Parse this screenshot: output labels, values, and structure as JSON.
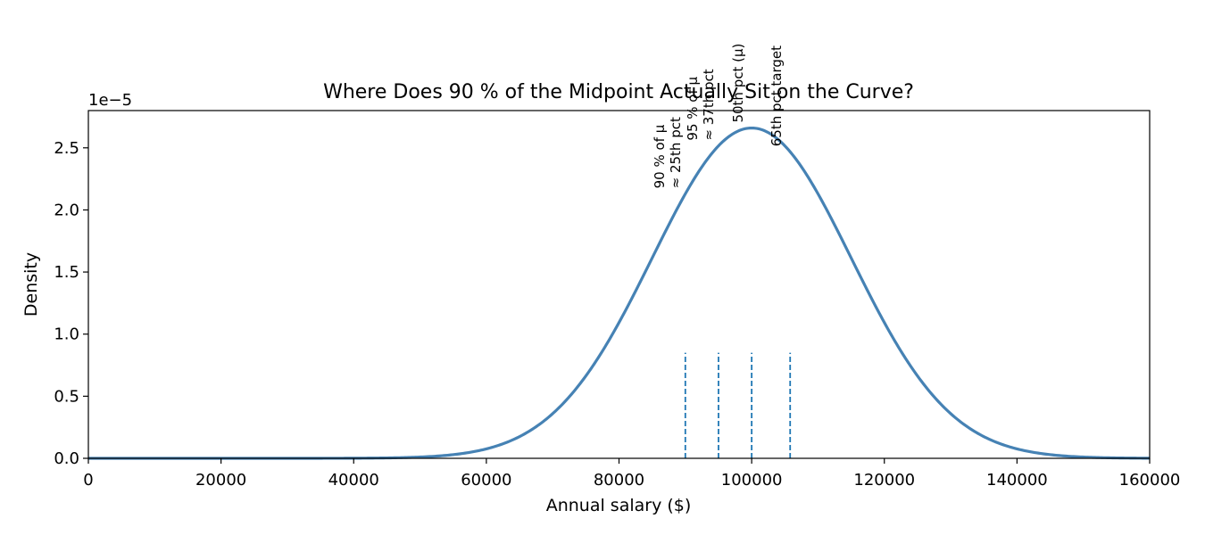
{
  "chart_data": {
    "type": "line",
    "title": "Where Does 90 % of the Midpoint Actually Sit on the Curve?",
    "xlabel": "Annual salary ($)",
    "ylabel": "Density",
    "offset_text": "1e−5",
    "xlim": [
      0,
      160000
    ],
    "ylim": [
      0,
      2.8e-05
    ],
    "x_ticks": [
      0,
      20000,
      40000,
      60000,
      80000,
      100000,
      120000,
      140000,
      160000
    ],
    "x_tick_labels": [
      "0",
      "20000",
      "40000",
      "60000",
      "80000",
      "100000",
      "120000",
      "140000",
      "160000"
    ],
    "y_ticks": [
      0,
      5e-06,
      1e-05,
      1.5e-05,
      2e-05,
      2.5e-05
    ],
    "y_tick_labels": [
      "0.0",
      "0.5",
      "1.0",
      "1.5",
      "2.0",
      "2.5"
    ],
    "grid": false,
    "series": [
      {
        "distribution": "normal",
        "mean": 100000,
        "std": 15000,
        "color": "#4682b4"
      }
    ],
    "markers": [
      {
        "x": 90000,
        "line1": "90 % of μ",
        "line2": "≈ 25th pct",
        "color": "#1f77b4"
      },
      {
        "x": 95000,
        "line1": "95 % of μ",
        "line2": "≈ 37th pct",
        "color": "#1f77b4"
      },
      {
        "x": 100000,
        "line1": "50th pct (μ)",
        "line2": "",
        "color": "#1f77b4"
      },
      {
        "x": 105800,
        "line1": "65th pct target",
        "line2": "",
        "color": "#1f77b4"
      }
    ],
    "marker_line_top": 8.5e-06
  }
}
